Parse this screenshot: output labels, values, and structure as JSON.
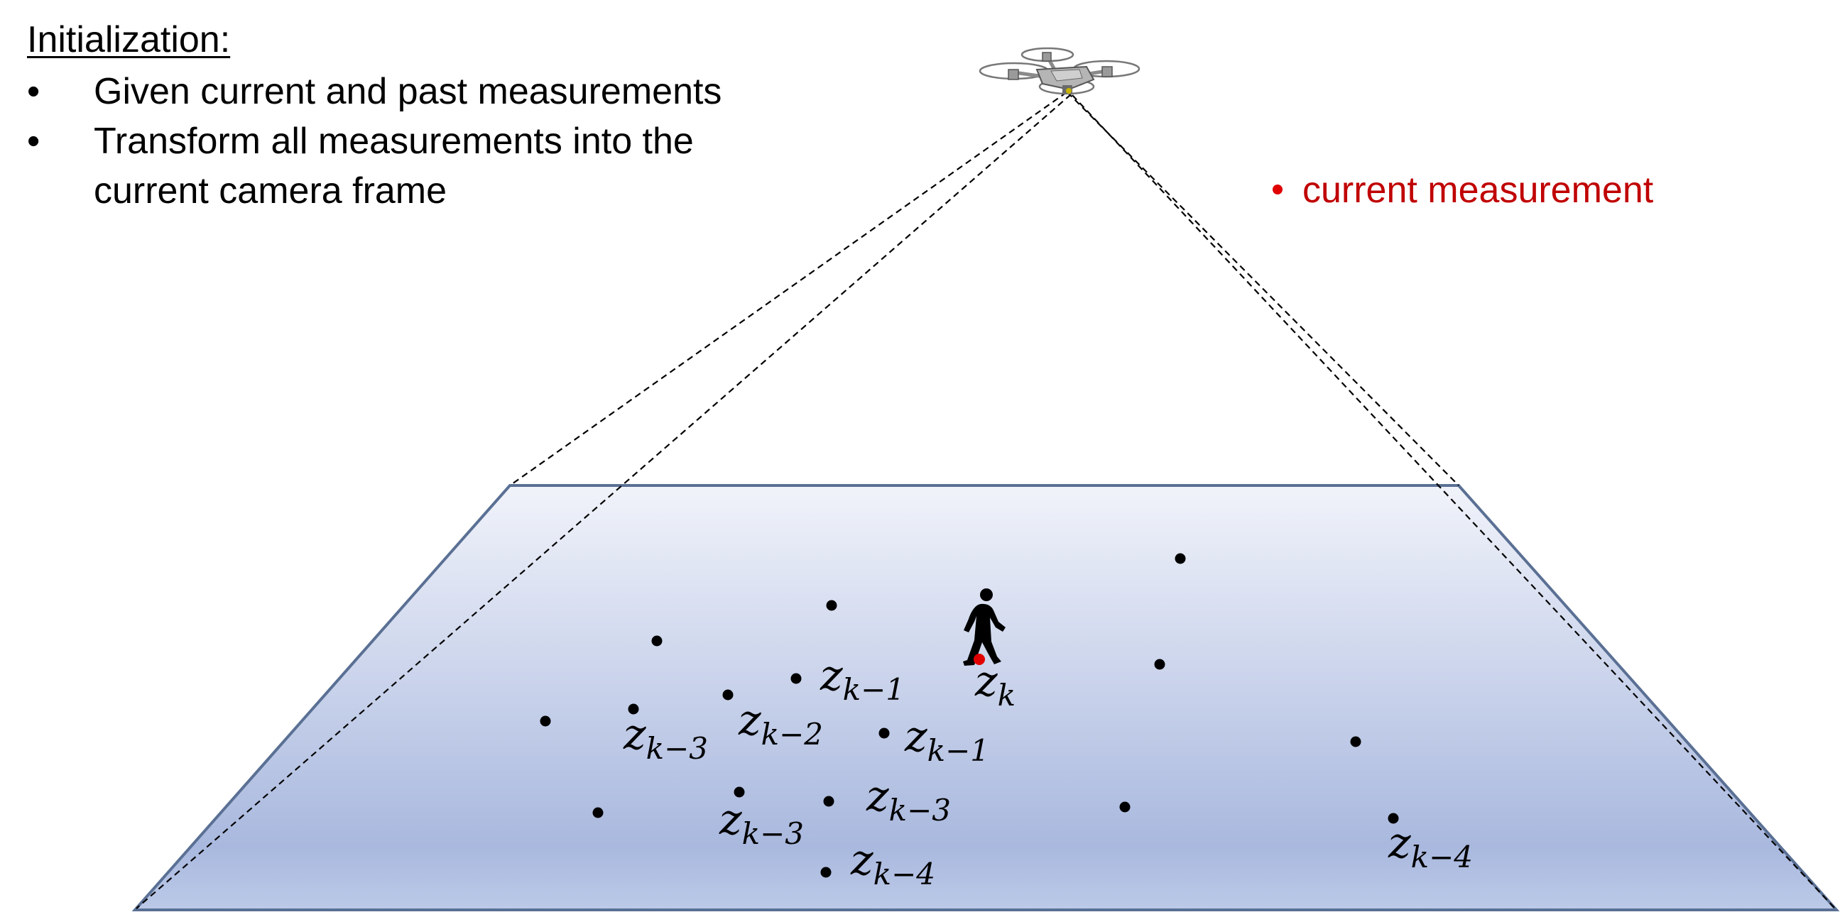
{
  "initialization": {
    "heading": "Initialization:",
    "bullets": [
      "Given current and past measurements",
      "Transform all measurements into the current camera frame"
    ]
  },
  "legend": {
    "label": "current measurement",
    "color": "#e00000"
  },
  "colors": {
    "plane_top": "#eef1f9",
    "plane_bottom": "#a9b8de",
    "plane_edge": "#5a7094",
    "measurement_dot": "#000000",
    "current_dot": "#e00000"
  },
  "icons": {
    "drone": "drone-icon",
    "pedestrian": "walking-person-icon"
  },
  "labels": {
    "zk": {
      "base": "z",
      "sub": "k"
    },
    "zk1a": {
      "base": "z",
      "sub": "k−1"
    },
    "zk1b": {
      "base": "z",
      "sub": "k−1"
    },
    "zk2": {
      "base": "z",
      "sub": "k−2"
    },
    "zk3a": {
      "base": "z",
      "sub": "k−3"
    },
    "zk3b": {
      "base": "z",
      "sub": "k−3"
    },
    "zk3c": {
      "base": "z",
      "sub": "k−3"
    },
    "zk4a": {
      "base": "z",
      "sub": "k−4"
    },
    "zk4b": {
      "base": "z",
      "sub": "k−4"
    }
  }
}
